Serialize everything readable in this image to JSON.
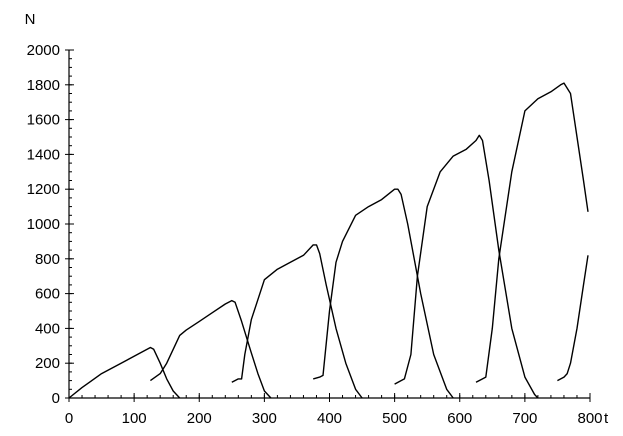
{
  "chart_data": {
    "type": "line",
    "title": "",
    "xlabel": "t",
    "ylabel": "N",
    "xlim": [
      0,
      800
    ],
    "ylim": [
      0,
      2000
    ],
    "xticks": [
      0,
      100,
      200,
      300,
      400,
      500,
      600,
      700,
      800
    ],
    "yticks": [
      0,
      200,
      400,
      600,
      800,
      1000,
      1200,
      1400,
      1600,
      1800,
      2000
    ],
    "grid": false,
    "legend": "none",
    "line_color": "#000000",
    "series": [
      {
        "x": [
          0,
          20,
          50,
          80,
          110,
          125,
          130,
          140,
          150,
          160,
          170
        ],
        "y": [
          0,
          60,
          140,
          200,
          260,
          290,
          280,
          200,
          110,
          40,
          0
        ]
      },
      {
        "x": [
          125,
          140,
          150,
          160,
          170,
          180,
          200,
          220,
          240,
          250,
          255,
          265,
          280,
          290,
          300,
          310
        ],
        "y": [
          100,
          140,
          200,
          280,
          360,
          390,
          440,
          490,
          540,
          560,
          550,
          440,
          260,
          140,
          40,
          0
        ]
      },
      {
        "x": [
          250,
          260,
          265,
          270,
          280,
          300,
          320,
          340,
          360,
          375,
          380,
          385,
          395,
          410,
          425,
          440,
          450
        ],
        "y": [
          90,
          110,
          110,
          250,
          450,
          680,
          740,
          780,
          820,
          880,
          880,
          830,
          650,
          400,
          200,
          50,
          0
        ]
      },
      {
        "x": [
          375,
          385,
          390,
          400,
          410,
          420,
          440,
          460,
          480,
          500,
          505,
          510,
          520,
          540,
          560,
          580,
          590
        ],
        "y": [
          110,
          120,
          130,
          500,
          780,
          900,
          1050,
          1100,
          1140,
          1200,
          1200,
          1170,
          1000,
          600,
          250,
          50,
          0
        ]
      },
      {
        "x": [
          500,
          510,
          515,
          525,
          535,
          550,
          570,
          590,
          610,
          625,
          630,
          635,
          645,
          660,
          680,
          700,
          715,
          720
        ],
        "y": [
          80,
          100,
          110,
          250,
          700,
          1100,
          1300,
          1390,
          1430,
          1480,
          1510,
          1480,
          1250,
          850,
          400,
          120,
          20,
          0
        ]
      },
      {
        "x": [
          625,
          635,
          640,
          650,
          660,
          680,
          700,
          720,
          740,
          755,
          760,
          770,
          780,
          790,
          797
        ],
        "y": [
          90,
          110,
          120,
          400,
          800,
          1300,
          1650,
          1720,
          1760,
          1800,
          1810,
          1750,
          1500,
          1250,
          1070
        ]
      },
      {
        "x": [
          750,
          760,
          765,
          770,
          780,
          790,
          797
        ],
        "y": [
          100,
          120,
          140,
          200,
          400,
          650,
          820
        ]
      }
    ]
  }
}
